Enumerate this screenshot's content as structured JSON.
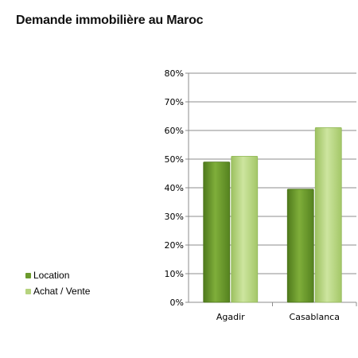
{
  "chart_data": {
    "type": "bar",
    "title": "Demande immobilière au Maroc",
    "categories": [
      "Agadir",
      "Casablanca"
    ],
    "series": [
      {
        "name": "Location",
        "values": [
          49,
          39.5
        ],
        "color": "#6b9a2c"
      },
      {
        "name": "Achat / Vente",
        "values": [
          51,
          61
        ],
        "color": "#b6d37e"
      }
    ],
    "ylim": [
      0,
      80
    ],
    "yticks": [
      "0%",
      "10%",
      "20%",
      "30%",
      "40%",
      "50%",
      "60%",
      "70%",
      "80%"
    ],
    "grid": true,
    "legend_position": "left"
  }
}
